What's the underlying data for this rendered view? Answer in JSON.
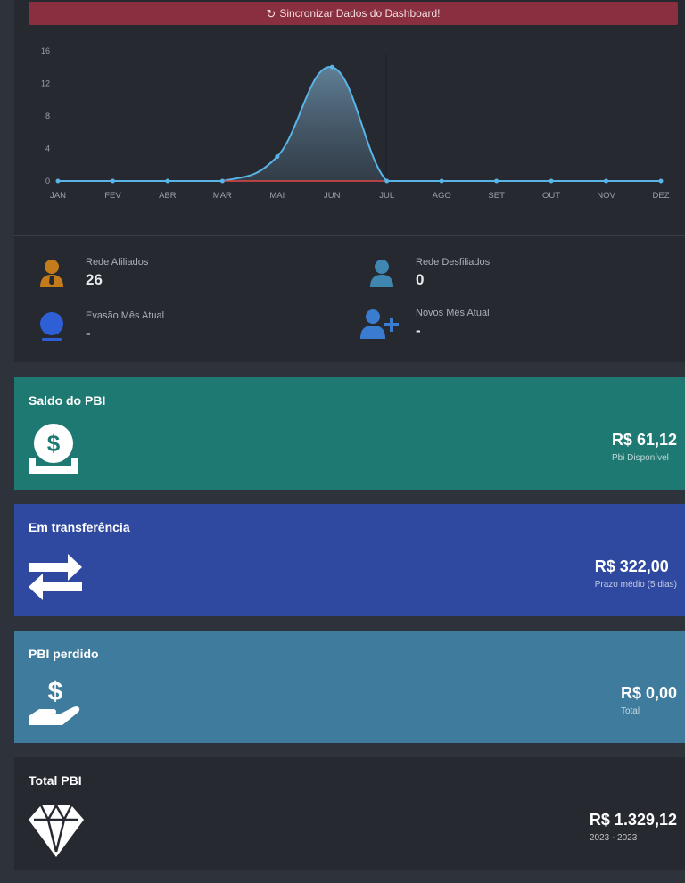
{
  "sync_button": {
    "label": "Sincronizar Dados do Dashboard!",
    "icon": "refresh-icon"
  },
  "chart_data": {
    "type": "area",
    "categories": [
      "JAN",
      "FEV",
      "ABR",
      "MAR",
      "MAI",
      "JUN",
      "JUL",
      "AGO",
      "SET",
      "OUT",
      "NOV",
      "DEZ"
    ],
    "y_ticks": [
      "0",
      "4",
      "8",
      "12",
      "16"
    ],
    "ylim": [
      0,
      16
    ],
    "series": [
      {
        "values": [
          0,
          0,
          0,
          0,
          3,
          14,
          0,
          0,
          0,
          0,
          0,
          0
        ],
        "color": "#59b4e8"
      },
      {
        "values": [
          0,
          0,
          0,
          0,
          0,
          0,
          0,
          0,
          0,
          0,
          0,
          0
        ],
        "color": "#e04848"
      }
    ],
    "title": "",
    "xlabel": "",
    "ylabel": "",
    "grid": false
  },
  "stats": {
    "rede_afiliados": {
      "label": "Rede Afiliados",
      "value": "26",
      "icon": "user-tie-icon",
      "color": "#c47b1a"
    },
    "rede_desfiliados": {
      "label": "Rede Desfiliados",
      "value": "0",
      "icon": "user-icon",
      "color": "#3f86b1"
    },
    "evasao": {
      "label": "Evasão Mês Atual",
      "value": "-",
      "icon": "user-minus-icon",
      "color": "#2e5fd6"
    },
    "novos": {
      "label": "Novos Mês Atual",
      "value": "-",
      "icon": "user-plus-icon",
      "color": "#3a7ccf"
    }
  },
  "cards": {
    "saldo": {
      "title": "Saldo do PBI",
      "amount": "R$ 61,12",
      "caption": "Pbi Disponível",
      "icon": "money-deposit-icon",
      "color": "#1f7973"
    },
    "transfer": {
      "title": "Em transferência",
      "amount": "R$ 322,00",
      "caption": "Prazo médio (5 dias)",
      "icon": "exchange-arrows-icon",
      "color": "#2f49a1"
    },
    "perdido": {
      "title": "PBI perdido",
      "amount": "R$ 0,00",
      "caption": "Total",
      "icon": "hand-dollar-icon",
      "color": "#3f7b9c"
    },
    "total": {
      "title": "Total PBI",
      "amount": "R$ 1.329,12",
      "caption": "2023 - 2023",
      "icon": "diamond-icon",
      "color": "#262930"
    }
  }
}
